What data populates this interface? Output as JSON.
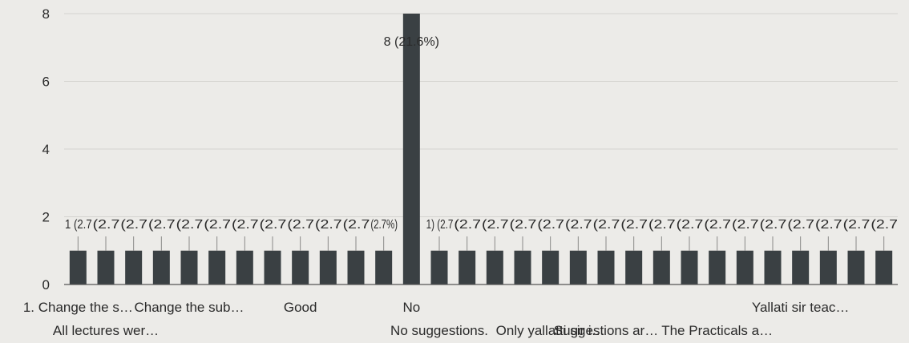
{
  "chart_data": {
    "type": "bar",
    "ylim": [
      0,
      8
    ],
    "y_ticks": [
      "0",
      "2",
      "4",
      "6",
      "8"
    ],
    "grid": true,
    "categories": [
      "1. Change the s…",
      "All lectures wer…",
      "",
      "",
      "Change the sub…",
      "",
      "",
      "",
      "Good",
      "",
      "",
      "",
      "No",
      "No suggestions.",
      "",
      "",
      "",
      "Only yallatti sir i…",
      "",
      "Suggestions ar…",
      "",
      "",
      "",
      "The Practicals a…",
      "",
      "",
      "Yallati sir teac…",
      "",
      "",
      ""
    ],
    "values": [
      1,
      1,
      1,
      1,
      1,
      1,
      1,
      1,
      1,
      1,
      1,
      1,
      8,
      1,
      1,
      1,
      1,
      1,
      1,
      1,
      1,
      1,
      1,
      1,
      1,
      1,
      1,
      1,
      1,
      1
    ],
    "bar_labels": [
      "1 (2.7",
      "(2.7",
      "(2.7",
      "(2.7",
      "(2.7",
      "(2.7",
      "(2.7",
      "(2.7",
      "(2.7",
      "(2.7",
      "(2.7",
      "(2.7%)",
      "8 (21.6%)",
      "1) (2.7",
      "(2.7",
      "(2.7",
      "(2.7",
      "(2.7",
      "(2.7",
      "(2.7",
      "(2.7",
      "(2.7",
      "(2.7",
      "(2.7",
      "(2.7",
      "(2.7",
      "(2.7",
      "(2.7",
      "(2.7",
      "(2.7"
    ],
    "title": "",
    "xlabel": "",
    "ylabel": ""
  }
}
